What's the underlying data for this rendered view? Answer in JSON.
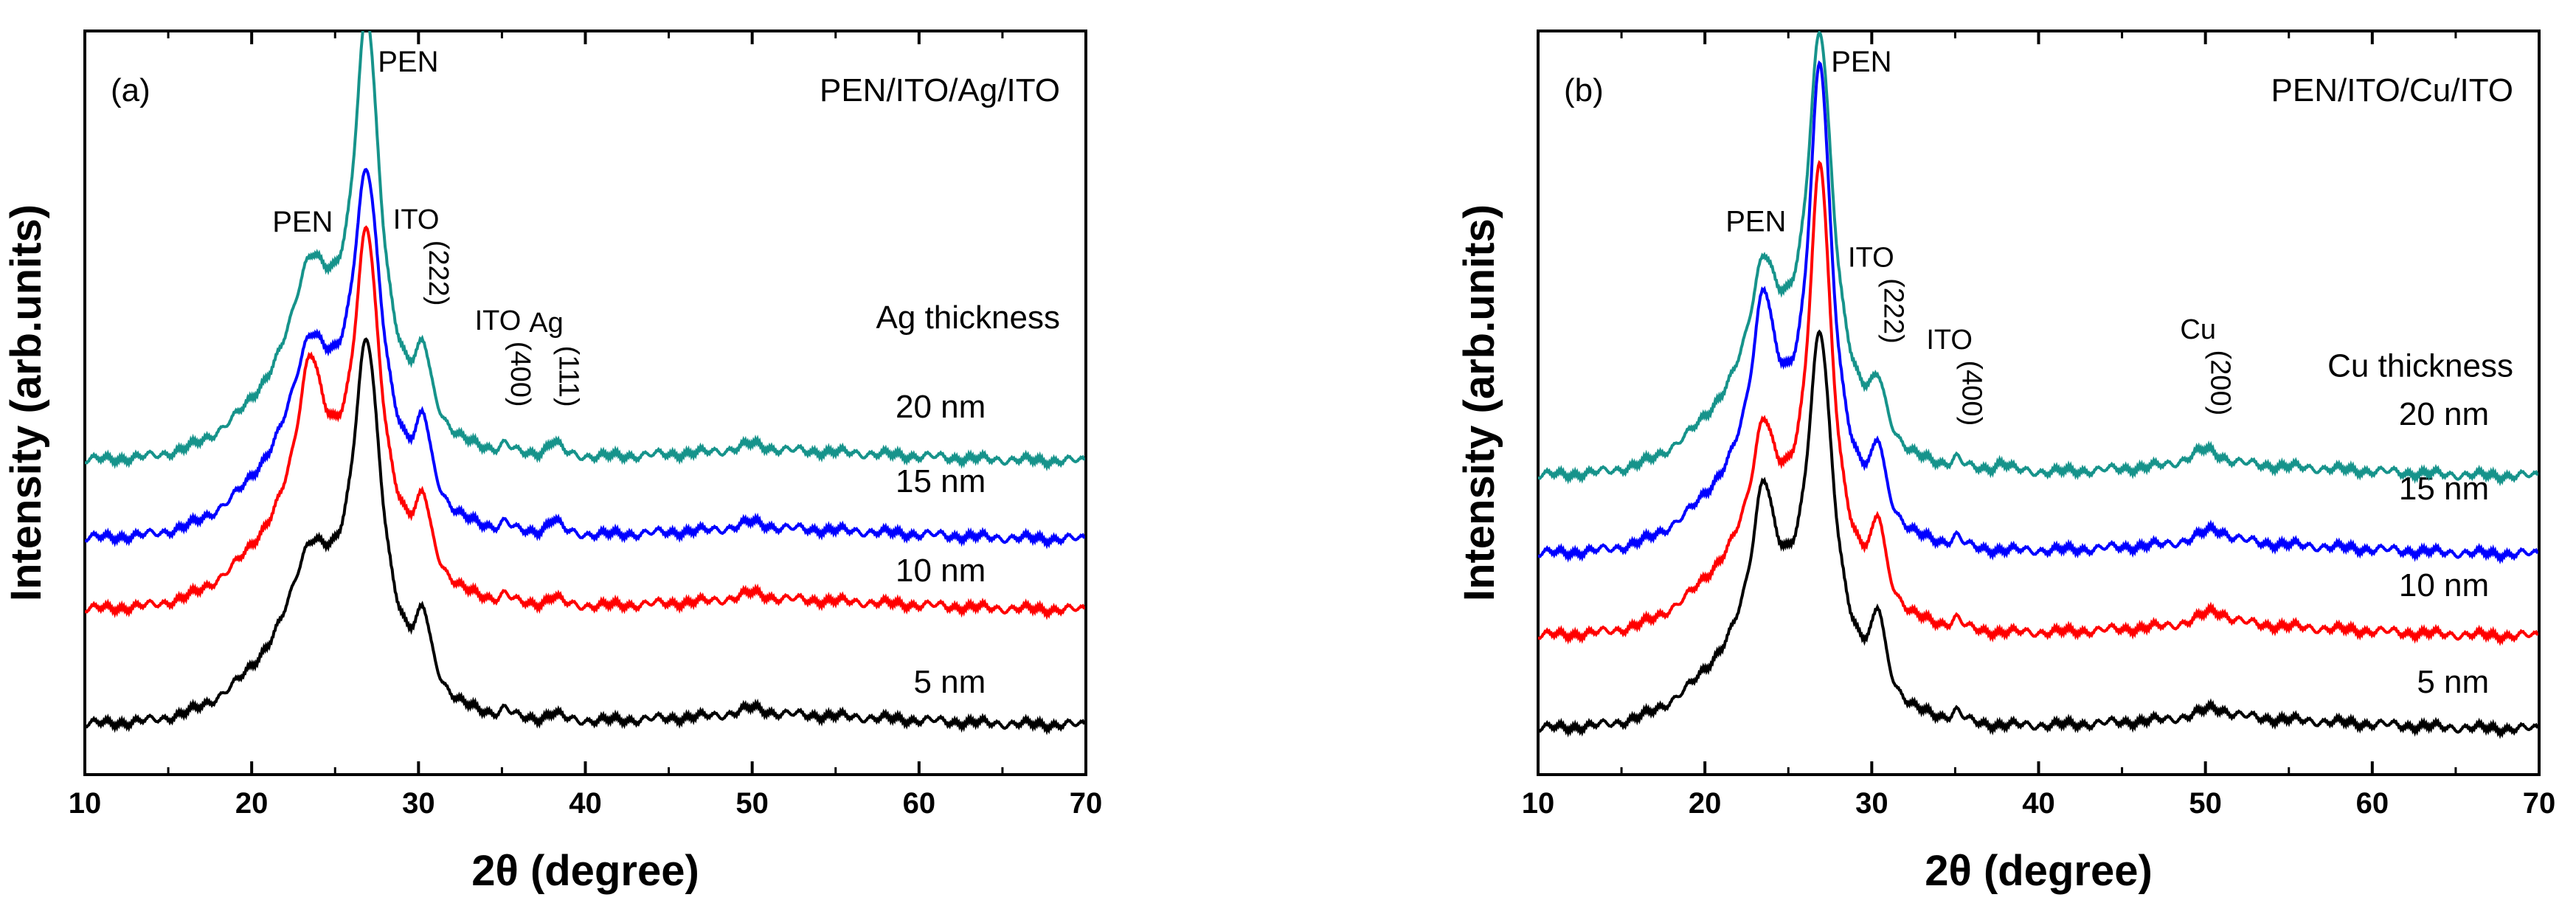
{
  "chart_data": [
    {
      "type": "line",
      "panel_label": "(a)",
      "title": "PEN/ITO/Ag/ITO",
      "xlabel": "2θ (degree)",
      "ylabel": "Intensity (arb.units)",
      "xlim": [
        10,
        70
      ],
      "ylim": [
        0,
        100
      ],
      "xticks": [
        10,
        20,
        30,
        40,
        50,
        60,
        70
      ],
      "yticks_shown": false,
      "legend_title": "Ag thickness",
      "series": [
        {
          "name": "5 nm",
          "color": "#000000",
          "offset": 0,
          "peaks": [
            [
              23.5,
              10,
              1.3
            ],
            [
              26.9,
              39,
              1.0
            ],
            [
              30.3,
              8,
              0.55
            ],
            [
              35.2,
              1.2,
              0.4
            ],
            [
              38.1,
              1,
              0.5
            ],
            [
              50,
              1,
              1.0
            ]
          ],
          "base": 2,
          "hump": 11
        },
        {
          "name": "10 nm",
          "color": "#ff0000",
          "offset": 14,
          "peaks": [
            [
              23.5,
              18,
              0.9
            ],
            [
              26.9,
              37,
              0.9
            ],
            [
              30.3,
              8,
              0.55
            ],
            [
              35.2,
              1.2,
              0.4
            ],
            [
              38.1,
              1.2,
              0.5
            ],
            [
              50,
              1,
              1.0
            ]
          ],
          "base": 2,
          "hump": 13
        },
        {
          "name": "15 nm",
          "color": "#0000ff",
          "offset": 32,
          "peaks": [
            [
              23.5,
              12,
              1.2
            ],
            [
              26.9,
              36,
              1.0
            ],
            [
              30.3,
              9,
              0.55
            ],
            [
              35.2,
              1.3,
              0.4
            ],
            [
              38.1,
              2,
              0.5
            ],
            [
              50,
              1,
              1.0
            ]
          ],
          "base": 2,
          "hump": 12
        },
        {
          "name": "20 nm",
          "color": "#16938b",
          "offset": 44,
          "peaks": [
            [
              23.5,
              12,
              1.2
            ],
            [
              26.9,
              46,
              0.9
            ],
            [
              30.3,
              8,
              0.55
            ],
            [
              35.2,
              1.3,
              0.4
            ],
            [
              38.1,
              2,
              0.5
            ],
            [
              50,
              1,
              1.0
            ]
          ],
          "base": 2,
          "hump": 12
        }
      ],
      "annotations": [
        {
          "text": "PEN",
          "x": 26.9,
          "y": "top"
        },
        {
          "text": "PEN",
          "x": 23.5,
          "y": "second"
        },
        {
          "text": "ITO",
          "sub": "(222)",
          "x": 30.3
        },
        {
          "text": "ITO",
          "sub": "(400)",
          "x": 35.2
        },
        {
          "text": "Ag",
          "sub": "(111)",
          "x": 38.1
        }
      ]
    },
    {
      "type": "line",
      "panel_label": "(b)",
      "title": "PEN/ITO/Cu/ITO",
      "xlabel": "2θ (degree)",
      "ylabel": "Intensity (arb.units)",
      "xlim": [
        10,
        70
      ],
      "ylim": [
        0,
        100
      ],
      "xticks": [
        10,
        20,
        30,
        40,
        50,
        60,
        70
      ],
      "yticks_shown": false,
      "legend_title": "Cu thickness",
      "series": [
        {
          "name": "5 nm",
          "color": "#000000",
          "offset": 0,
          "peaks": [
            [
              23.5,
              18,
              0.8
            ],
            [
              26.9,
              40,
              0.9
            ],
            [
              30.4,
              9,
              0.5
            ],
            [
              35.1,
              1.5,
              0.4
            ],
            [
              50.5,
              1.5,
              1.2
            ]
          ],
          "base": 1.5,
          "hump": 12
        },
        {
          "name": "10 nm",
          "color": "#ff0000",
          "offset": 11,
          "peaks": [
            [
              23.5,
              14,
              0.8
            ],
            [
              26.9,
              50,
              0.8
            ],
            [
              30.4,
              9,
              0.5
            ],
            [
              35.1,
              1.5,
              0.4
            ],
            [
              50.5,
              2,
              1.2
            ]
          ],
          "base": 1.5,
          "hump": 12
        },
        {
          "name": "15 nm",
          "color": "#0000ff",
          "offset": 22,
          "peaks": [
            [
              23.5,
              20,
              0.8
            ],
            [
              26.9,
              52,
              0.8
            ],
            [
              30.4,
              8,
              0.5
            ],
            [
              35.1,
              1.5,
              0.4
            ],
            [
              50.5,
              2,
              1.2
            ]
          ],
          "base": 1.5,
          "hump": 12
        },
        {
          "name": "20 nm",
          "color": "#16938b",
          "offset": 36,
          "peaks": [
            [
              23.5,
              14,
              0.9
            ],
            [
              26.9,
              46,
              0.9
            ],
            [
              30.4,
              6,
              0.55
            ],
            [
              35.1,
              1.5,
              0.4
            ],
            [
              37.8,
              1.2,
              0.5
            ],
            [
              50.0,
              2.2,
              1.2
            ]
          ],
          "base": 1.5,
          "hump": 12
        }
      ],
      "annotations": [
        {
          "text": "PEN",
          "x": 26.9,
          "y": "top"
        },
        {
          "text": "PEN",
          "x": 23.5,
          "y": "second"
        },
        {
          "text": "ITO",
          "sub": "(222)",
          "x": 30.4
        },
        {
          "text": "ITO",
          "sub": "(400)",
          "x": 35.1
        },
        {
          "text": "Cu",
          "sub": "(200)",
          "x": 50.0
        }
      ]
    }
  ]
}
